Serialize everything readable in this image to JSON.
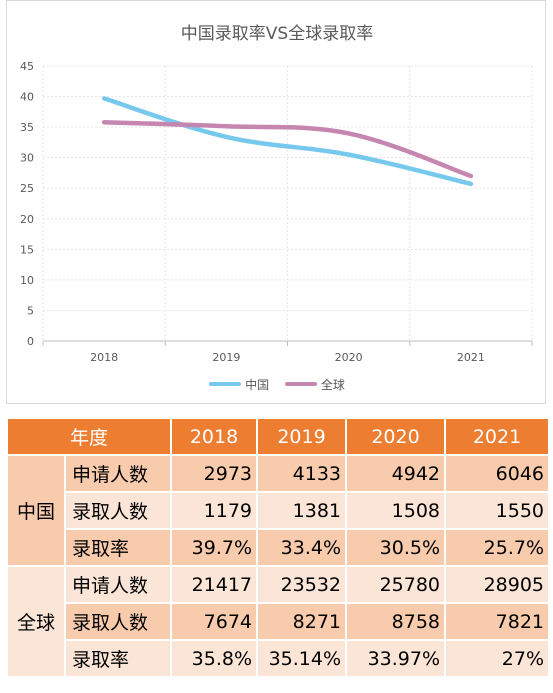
{
  "chart_data": {
    "type": "line",
    "title": "中国录取率VS全球录取率",
    "categories": [
      "2018",
      "2019",
      "2020",
      "2021"
    ],
    "ylim": [
      0,
      45
    ],
    "yticks": [
      "0",
      "5",
      "10",
      "15",
      "20",
      "25",
      "30",
      "35",
      "40",
      "45"
    ],
    "grid": true,
    "legend_position": "bottom",
    "series": [
      {
        "name": "中国",
        "values": [
          39.7,
          33.4,
          30.5,
          25.7
        ],
        "color": "#76c8ec"
      },
      {
        "name": "全球",
        "values": [
          35.8,
          35.14,
          33.97,
          27
        ],
        "color": "#c586b0"
      }
    ]
  },
  "table": {
    "headers": [
      "年度",
      "2018",
      "2019",
      "2020",
      "2021"
    ],
    "groups": [
      {
        "name": "中国",
        "rows": [
          {
            "metric": "申请人数",
            "values": [
              "2973",
              "4133",
              "4942",
              "6046"
            ]
          },
          {
            "metric": "录取人数",
            "values": [
              "1179",
              "1381",
              "1508",
              "1550"
            ]
          },
          {
            "metric": "录取率",
            "values": [
              "39.7%",
              "33.4%",
              "30.5%",
              "25.7%"
            ]
          }
        ]
      },
      {
        "name": "全球",
        "rows": [
          {
            "metric": "申请人数",
            "values": [
              "21417",
              "23532",
              "25780",
              "28905"
            ]
          },
          {
            "metric": "录取人数",
            "values": [
              "7674",
              "8271",
              "8758",
              "7821"
            ]
          },
          {
            "metric": "录取率",
            "values": [
              "35.8%",
              "35.14%",
              "33.97%",
              "27%"
            ]
          }
        ]
      }
    ]
  }
}
